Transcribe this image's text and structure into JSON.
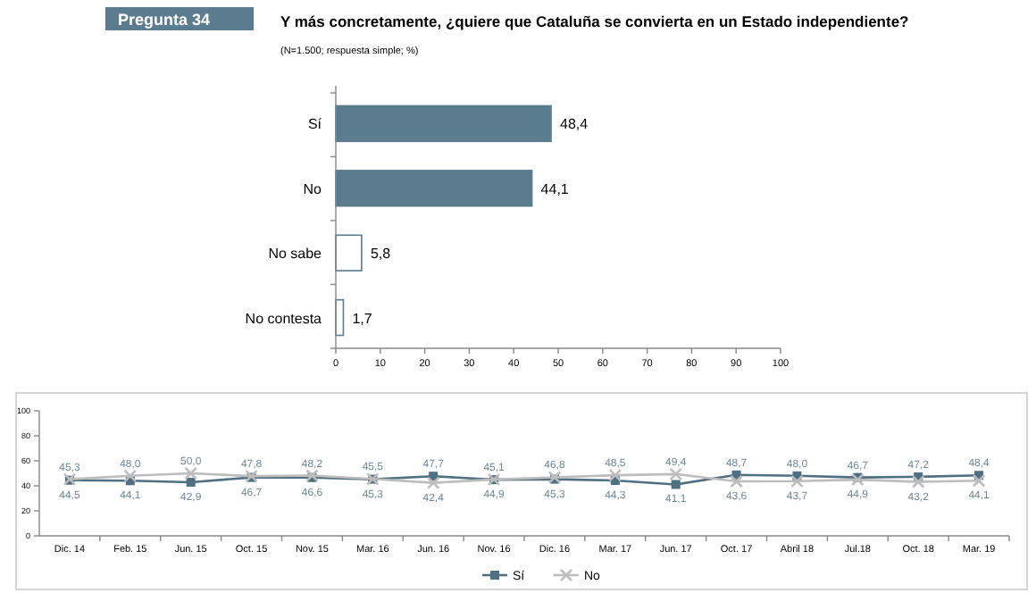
{
  "chart_data": [
    {
      "type": "bar",
      "orientation": "horizontal",
      "title": "Y más concretamente,  ¿quiere que Cataluña se convierta en un Estado independiente?",
      "subtitle": "(N=1.500; respuesta simple; %)",
      "annotations": [
        "Pregunta 34"
      ],
      "categories": [
        "Sí",
        "No",
        "No sabe",
        "No contesta"
      ],
      "values": [
        48.4,
        44.1,
        5.8,
        1.7
      ],
      "value_labels": [
        "48,4",
        "44,1",
        "5,8",
        "1,7"
      ],
      "colors": [
        "#5b7b8e",
        "#5b7b8e",
        "#ffffff",
        "#ffffff"
      ],
      "xlim": [
        0,
        100
      ],
      "xticks": [
        0,
        10,
        20,
        30,
        40,
        50,
        60,
        70,
        80,
        90,
        100
      ]
    },
    {
      "type": "line",
      "categories": [
        "Dic. 14",
        "Feb. 15",
        "Jun. 15",
        "Oct. 15",
        "Nov. 15",
        "Mar. 16",
        "Jun. 16",
        "Nov. 16",
        "Dic. 16",
        "Mar. 17",
        "Jun. 17",
        "Oct. 17",
        "Abril 18",
        "Jul.18",
        "Oct. 18",
        "Mar. 19"
      ],
      "ylim": [
        0,
        100
      ],
      "yticks": [
        0,
        20,
        40,
        60,
        80,
        100
      ],
      "legend": "bottom",
      "series": [
        {
          "name": "Sí",
          "color": "#4f6f82",
          "marker": "square",
          "values": [
            44.5,
            44.1,
            42.9,
            46.7,
            46.6,
            45.3,
            47.7,
            44.9,
            45.3,
            44.3,
            41.1,
            48.7,
            48.0,
            46.7,
            47.2,
            48.4
          ],
          "value_labels": [
            "44,5",
            "44,1",
            "42,9",
            "46,7",
            "46,6",
            "45,3",
            "47,7",
            "44,9",
            "45,3",
            "44,3",
            "41,1",
            "48,7",
            "48,0",
            "46,7",
            "47,2",
            "48,4"
          ]
        },
        {
          "name": "No",
          "color": "#bdbdbd",
          "marker": "cross",
          "values": [
            45.3,
            48.0,
            50.0,
            47.8,
            48.2,
            45.5,
            42.4,
            45.1,
            46.8,
            48.5,
            49.4,
            43.6,
            43.7,
            44.9,
            43.2,
            44.1
          ],
          "value_labels": [
            "45,3",
            "48,0",
            "50,0",
            "47,8",
            "48,2",
            "45,5",
            "42,4",
            "45,1",
            "46,8",
            "48,5",
            "49,4",
            "43,6",
            "43,7",
            "44,9",
            "43,2",
            "44,1"
          ]
        }
      ]
    }
  ]
}
